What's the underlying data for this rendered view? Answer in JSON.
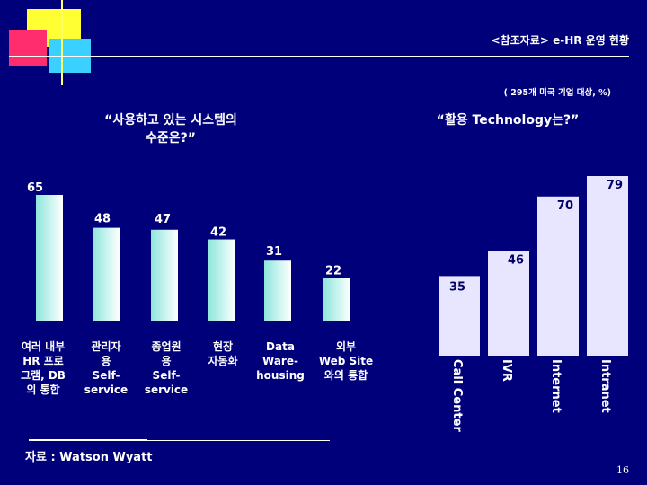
{
  "header": {
    "title": "<참조자료> e-HR 운영 현황",
    "subnote": "( 295개 미국 기업 대상, %)",
    "left_heading": [
      "“사용하고 있는 시스템의",
      "수준은?”"
    ],
    "right_heading": "“활용 Technology는?”"
  },
  "colors": {
    "background": "#00007a",
    "bar_gradient_start": "#8ee6dc",
    "bar_gradient_end": "#ffffff",
    "right_bar_color": "#e8e6ff",
    "deco_yellow": "#ffff33",
    "deco_red": "#ff2d6e",
    "deco_cyan": "#3ad0ff"
  },
  "chart_data": [
    {
      "type": "bar",
      "title": "“사용하고 있는 시스템의 수준은?”",
      "categories": [
        [
          "여러 내부",
          "HR 프로",
          "그램, DB",
          "의 통합"
        ],
        [
          "관리자",
          "용",
          "Self-",
          "service"
        ],
        [
          "종업원",
          "용",
          "Self-",
          "service"
        ],
        [
          "현장",
          "자동화"
        ],
        [
          "Data",
          "Ware-",
          "housing"
        ],
        [
          "외부",
          "Web Site",
          "와의 통합"
        ]
      ],
      "values": [
        65,
        48,
        47,
        42,
        31,
        22
      ],
      "unit": "%"
    },
    {
      "type": "bar",
      "title": "“활용 Technology는?”",
      "categories": [
        "Call Center",
        "IVR",
        "Internet",
        "Intranet"
      ],
      "values": [
        35,
        46,
        70,
        79
      ],
      "unit": "%"
    }
  ],
  "footer": {
    "source": "자료 : Watson Wyatt",
    "page_number": "16"
  }
}
